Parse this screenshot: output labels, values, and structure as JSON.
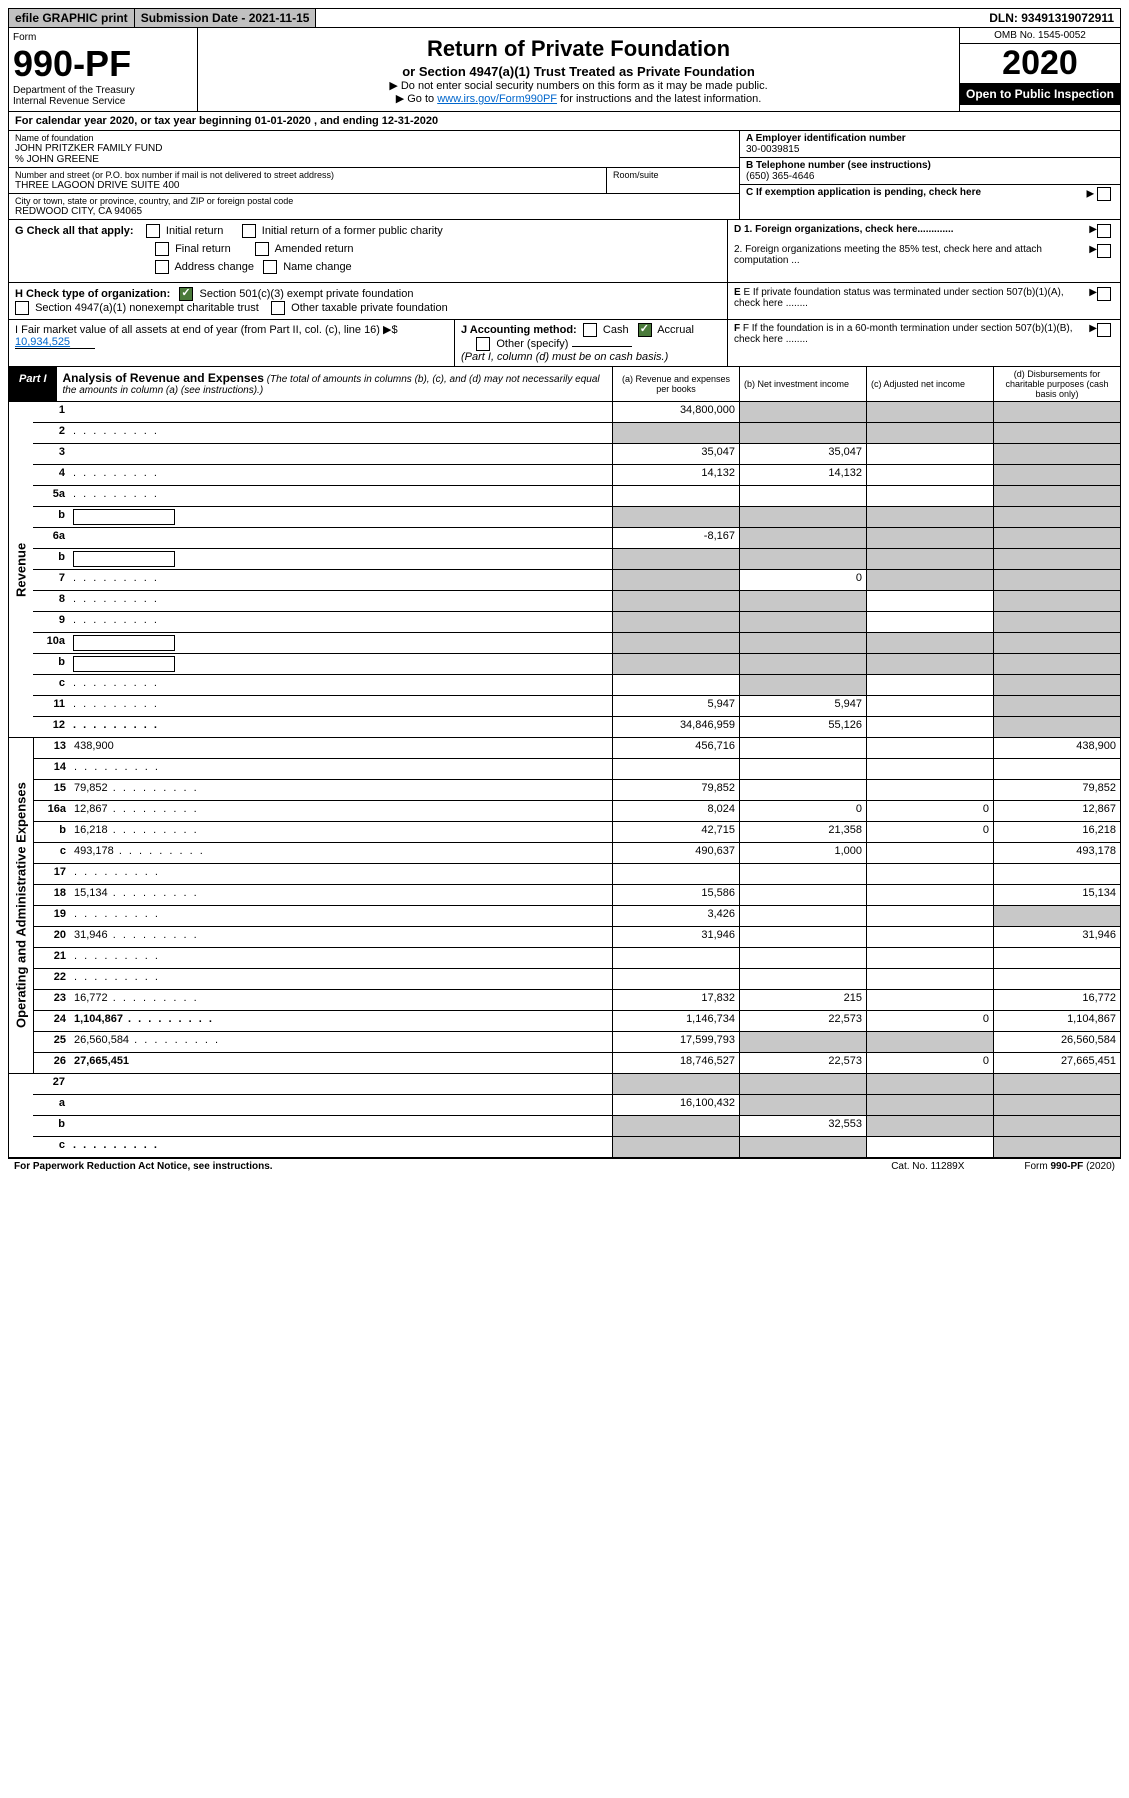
{
  "topbar": {
    "efile": "efile GRAPHIC print",
    "sub_date_label": "Submission Date - 2021-11-15",
    "dln": "DLN: 93491319072911"
  },
  "header": {
    "form_label": "Form",
    "form_no": "990-PF",
    "dept": "Department of the Treasury",
    "irs": "Internal Revenue Service",
    "title": "Return of Private Foundation",
    "subtitle": "or Section 4947(a)(1) Trust Treated as Private Foundation",
    "instr1": "▶ Do not enter social security numbers on this form as it may be made public.",
    "instr2_pre": "▶ Go to ",
    "instr2_link": "www.irs.gov/Form990PF",
    "instr2_post": " for instructions and the latest information.",
    "omb": "OMB No. 1545-0052",
    "year": "2020",
    "open": "Open to Public Inspection"
  },
  "cal_year": "For calendar year 2020, or tax year beginning 01-01-2020                        , and ending 12-31-2020",
  "info": {
    "name_lbl": "Name of foundation",
    "name": "JOHN PRITZKER FAMILY FUND",
    "care_of": "% JOHN GREENE",
    "street_lbl": "Number and street (or P.O. box number if mail is not delivered to street address)",
    "street": "THREE LAGOON DRIVE SUITE 400",
    "room_lbl": "Room/suite",
    "city_lbl": "City or town, state or province, country, and ZIP or foreign postal code",
    "city": "REDWOOD CITY, CA  94065",
    "ein_lbl": "A Employer identification number",
    "ein": "30-0039815",
    "phone_lbl": "B Telephone number (see instructions)",
    "phone": "(650) 365-4646",
    "c_lbl": "C If exemption application is pending, check here",
    "d1": "D 1. Foreign organizations, check here.............",
    "d2": "2. Foreign organizations meeting the 85% test, check here and attach computation ...",
    "e_lbl": "E  If private foundation status was terminated under section 507(b)(1)(A), check here ........",
    "f_lbl": "F  If the foundation is in a 60-month termination under section 507(b)(1)(B), check here ........"
  },
  "g": {
    "label": "G Check all that apply:",
    "opts": [
      "Initial return",
      "Final return",
      "Address change",
      "Initial return of a former public charity",
      "Amended return",
      "Name change"
    ]
  },
  "h": {
    "label": "H Check type of organization:",
    "opt1": "Section 501(c)(3) exempt private foundation",
    "opt2": "Section 4947(a)(1) nonexempt charitable trust",
    "opt3": "Other taxable private foundation"
  },
  "i": {
    "label": "I Fair market value of all assets at end of year (from Part II, col. (c), line 16) ▶$",
    "value": "10,934,525"
  },
  "j": {
    "label": "J Accounting method:",
    "cash": "Cash",
    "accrual": "Accrual",
    "other": "Other (specify)",
    "note": "(Part I, column (d) must be on cash basis.)"
  },
  "part1": {
    "tag": "Part I",
    "title": "Analysis of Revenue and Expenses",
    "note": "(The total of amounts in columns (b), (c), and (d) may not necessarily equal the amounts in column (a) (see instructions).)",
    "col_a": "(a)   Revenue and expenses per books",
    "col_b": "(b)   Net investment income",
    "col_c": "(c)   Adjusted net income",
    "col_d": "(d)   Disbursements for charitable purposes (cash basis only)"
  },
  "side_labels": {
    "rev": "Revenue",
    "exp": "Operating and Administrative Expenses"
  },
  "rows": [
    {
      "n": "1",
      "d": "",
      "a": "34,800,000",
      "b": "",
      "c": "",
      "grey": [
        "b",
        "c",
        "d"
      ]
    },
    {
      "n": "2",
      "d": "",
      "a": "",
      "b": "",
      "c": "",
      "grey": [
        "a",
        "b",
        "c",
        "d"
      ],
      "dots": true
    },
    {
      "n": "3",
      "d": "",
      "a": "35,047",
      "b": "35,047",
      "c": "",
      "grey": [
        "d"
      ]
    },
    {
      "n": "4",
      "d": "",
      "a": "14,132",
      "b": "14,132",
      "c": "",
      "grey": [
        "d"
      ],
      "dots": true
    },
    {
      "n": "5a",
      "d": "",
      "a": "",
      "b": "",
      "c": "",
      "grey": [
        "d"
      ],
      "dots": true
    },
    {
      "n": "b",
      "d": "",
      "a": "",
      "b": "",
      "c": "",
      "grey": [
        "a",
        "b",
        "c",
        "d"
      ],
      "box": true
    },
    {
      "n": "6a",
      "d": "",
      "a": "-8,167",
      "b": "",
      "c": "",
      "grey": [
        "b",
        "c",
        "d"
      ]
    },
    {
      "n": "b",
      "d": "",
      "a": "",
      "b": "",
      "c": "",
      "grey": [
        "a",
        "b",
        "c",
        "d"
      ],
      "box": true
    },
    {
      "n": "7",
      "d": "",
      "a": "",
      "b": "0",
      "c": "",
      "grey": [
        "a",
        "c",
        "d"
      ],
      "dots": true
    },
    {
      "n": "8",
      "d": "",
      "a": "",
      "b": "",
      "c": "",
      "grey": [
        "a",
        "b",
        "d"
      ],
      "dots": true
    },
    {
      "n": "9",
      "d": "",
      "a": "",
      "b": "",
      "c": "",
      "grey": [
        "a",
        "b",
        "d"
      ],
      "dots": true
    },
    {
      "n": "10a",
      "d": "",
      "a": "",
      "b": "",
      "c": "",
      "grey": [
        "a",
        "b",
        "c",
        "d"
      ],
      "box": true
    },
    {
      "n": "b",
      "d": "",
      "a": "",
      "b": "",
      "c": "",
      "grey": [
        "a",
        "b",
        "c",
        "d"
      ],
      "box": true,
      "dots": true
    },
    {
      "n": "c",
      "d": "",
      "a": "",
      "b": "",
      "c": "",
      "grey": [
        "b",
        "d"
      ],
      "dots": true
    },
    {
      "n": "11",
      "d": "",
      "a": "5,947",
      "b": "5,947",
      "c": "",
      "grey": [
        "d"
      ],
      "dots": true
    },
    {
      "n": "12",
      "d": "",
      "a": "34,846,959",
      "b": "55,126",
      "c": "",
      "grey": [
        "d"
      ],
      "bold": true,
      "dots": true
    }
  ],
  "exp_rows": [
    {
      "n": "13",
      "d": "438,900",
      "a": "456,716",
      "b": "",
      "c": ""
    },
    {
      "n": "14",
      "d": "",
      "a": "",
      "b": "",
      "c": "",
      "dots": true
    },
    {
      "n": "15",
      "d": "79,852",
      "a": "79,852",
      "b": "",
      "c": "",
      "dots": true
    },
    {
      "n": "16a",
      "d": "12,867",
      "a": "8,024",
      "b": "0",
      "c": "0",
      "dots": true
    },
    {
      "n": "b",
      "d": "16,218",
      "a": "42,715",
      "b": "21,358",
      "c": "0",
      "dots": true
    },
    {
      "n": "c",
      "d": "493,178",
      "a": "490,637",
      "b": "1,000",
      "c": "",
      "dots": true
    },
    {
      "n": "17",
      "d": "",
      "a": "",
      "b": "",
      "c": "",
      "dots": true
    },
    {
      "n": "18",
      "d": "15,134",
      "a": "15,586",
      "b": "",
      "c": "",
      "dots": true
    },
    {
      "n": "19",
      "d": "",
      "a": "3,426",
      "b": "",
      "c": "",
      "grey": [
        "d"
      ],
      "dots": true
    },
    {
      "n": "20",
      "d": "31,946",
      "a": "31,946",
      "b": "",
      "c": "",
      "dots": true
    },
    {
      "n": "21",
      "d": "",
      "a": "",
      "b": "",
      "c": "",
      "dots": true
    },
    {
      "n": "22",
      "d": "",
      "a": "",
      "b": "",
      "c": "",
      "dots": true
    },
    {
      "n": "23",
      "d": "16,772",
      "a": "17,832",
      "b": "215",
      "c": "",
      "dots": true
    },
    {
      "n": "24",
      "d": "1,104,867",
      "a": "1,146,734",
      "b": "22,573",
      "c": "0",
      "bold": true,
      "dots": true
    },
    {
      "n": "25",
      "d": "26,560,584",
      "a": "17,599,793",
      "b": "",
      "c": "",
      "grey": [
        "b",
        "c"
      ],
      "dots": true
    },
    {
      "n": "26",
      "d": "27,665,451",
      "a": "18,746,527",
      "b": "22,573",
      "c": "0",
      "bold": true
    }
  ],
  "net_rows": [
    {
      "n": "27",
      "d": "",
      "a": "",
      "b": "",
      "c": "",
      "grey": [
        "a",
        "b",
        "c",
        "d"
      ]
    },
    {
      "n": "a",
      "d": "",
      "a": "16,100,432",
      "b": "",
      "c": "",
      "grey": [
        "b",
        "c",
        "d"
      ],
      "bold": true
    },
    {
      "n": "b",
      "d": "",
      "a": "",
      "b": "32,553",
      "c": "",
      "grey": [
        "a",
        "c",
        "d"
      ],
      "bold": true
    },
    {
      "n": "c",
      "d": "",
      "a": "",
      "b": "",
      "c": "",
      "grey": [
        "a",
        "b",
        "d"
      ],
      "bold": true,
      "dots": true
    }
  ],
  "footer": {
    "paperwork": "For Paperwork Reduction Act Notice, see instructions.",
    "cat": "Cat. No. 11289X",
    "form": "Form 990-PF (2020)"
  },
  "colors": {
    "grey_bg": "#c8c8c8",
    "link": "#0066cc",
    "check_green": "#4a7a3a"
  }
}
